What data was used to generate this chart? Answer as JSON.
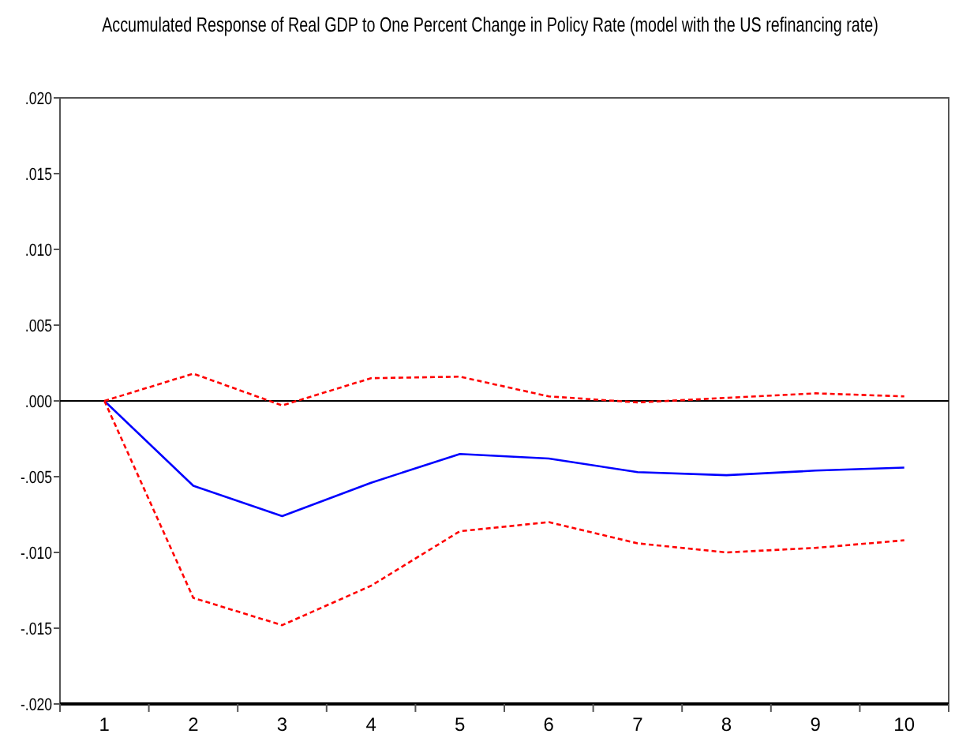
{
  "chart_data": {
    "type": "line",
    "title": "Accumulated Response of Real GDP to One Percent Change in Policy Rate (model with the US refinancing rate)",
    "categories": [
      "1",
      "2",
      "3",
      "4",
      "5",
      "6",
      "7",
      "8",
      "9",
      "10"
    ],
    "series": [
      {
        "color": "#0000ff",
        "line_style": "solid",
        "values": [
          0,
          -0.0056,
          -0.0076,
          -0.0054,
          -0.0035,
          -0.0038,
          -0.0047,
          -0.0049,
          -0.0046,
          -0.0044
        ]
      },
      {
        "color": "#ff0000",
        "line_style": "dashed",
        "values": [
          0,
          0.0018,
          -0.0003,
          0.0015,
          0.0016,
          0.0003,
          -0.0001,
          0.0002,
          0.0005,
          0.0003
        ]
      },
      {
        "color": "#ff0000",
        "line_style": "dashed",
        "values": [
          0,
          -0.013,
          -0.0148,
          -0.0122,
          -0.0086,
          -0.008,
          -0.0094,
          -0.01,
          -0.0097,
          -0.0092
        ]
      }
    ],
    "ylim": [
      -0.02,
      0.02
    ],
    "yticks": [
      {
        "value": -0.02,
        "label": "-.020"
      },
      {
        "value": -0.015,
        "label": "-.015"
      },
      {
        "value": -0.01,
        "label": "-.010"
      },
      {
        "value": -0.005,
        "label": "-.005"
      },
      {
        "value": 0,
        "label": ".000"
      },
      {
        "value": 0.005,
        "label": ".005"
      },
      {
        "value": 0.01,
        "label": ".010"
      },
      {
        "value": 0.015,
        "label": ".015"
      },
      {
        "value": 0.02,
        "label": ".020"
      }
    ],
    "ref_lines": [
      {
        "axis": "y",
        "value": 0,
        "color": "#000000"
      }
    ],
    "marker": "none"
  }
}
